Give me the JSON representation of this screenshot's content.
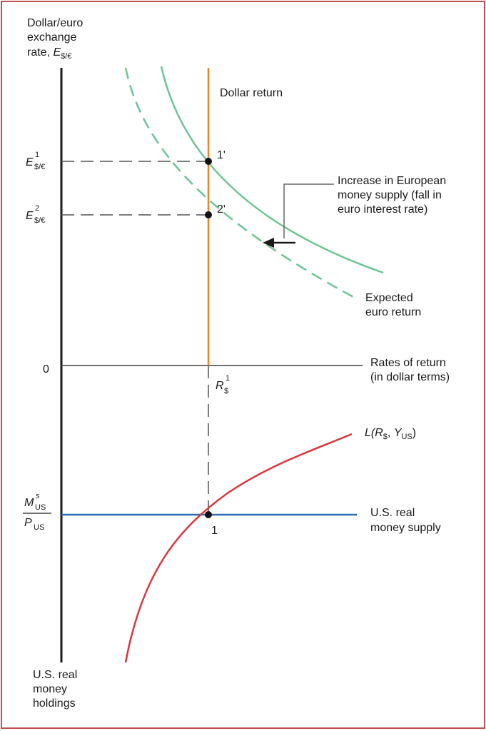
{
  "labels": {
    "y_axis_line1": "Dollar/euro",
    "y_axis_line2": "exchange",
    "y_axis_line3": "rate, ",
    "y_axis_sym": "E",
    "y_axis_sub": "$/€",
    "e1_sym": "E",
    "e1_sup": "1",
    "e1_sub": "$/€",
    "e2_sym": "E",
    "e2_sup": "2",
    "e2_sub": "$/€",
    "zero": "0",
    "dollar_return": "Dollar return",
    "point_1prime": "1'",
    "point_2prime": "2'",
    "point_1": "1",
    "annotation_line1": "Increase in European",
    "annotation_line2": "money supply (fall in",
    "annotation_line3": "euro interest rate)",
    "expected_line1": "Expected",
    "expected_line2": "euro return",
    "x_axis_line1": "Rates of return",
    "x_axis_line2": "(in dollar terms)",
    "r_sym": "R",
    "r_sup": "1",
    "r_sub": "$",
    "l_func_a": "L(",
    "l_func_r": "R",
    "l_func_rsub": "$",
    "l_func_b": ", ",
    "l_func_y": "Y",
    "l_func_ysub": "US",
    "l_func_c": ")",
    "ms_sym": "M",
    "ms_sup": "s",
    "ms_sub": "US",
    "p_sym": "P",
    "p_sub": "US",
    "money_supply_line1": "U.S. real",
    "money_supply_line2": "money supply",
    "holdings_line1": "U.S. real",
    "holdings_line2": "money",
    "holdings_line3": "holdings"
  },
  "colors": {
    "axis": "#1a1a1a",
    "dollar_return": "#e8862a",
    "euro_return": "#6cc493",
    "money_demand": "#d9363e",
    "money_supply": "#2e6db4",
    "border": "#c0504d"
  }
}
